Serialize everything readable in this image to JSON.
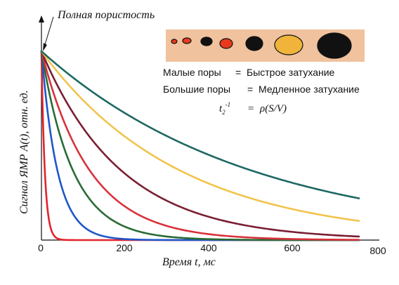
{
  "chart_data": {
    "type": "line",
    "title": "",
    "xlabel": "Время t, мс",
    "ylabel": "Сигнал ЯМР A(t), отн. ед.",
    "xlim": [
      0,
      800
    ],
    "ylim": [
      0,
      1
    ],
    "x_ticks": [
      "0",
      "200",
      "400",
      "600",
      "800"
    ],
    "grid": false,
    "annotations": {
      "full_porosity": "Полная пористость",
      "small_pores": "Малые поры",
      "fast_decay": "Быстрое затухание",
      "large_pores": "Большие поры",
      "slow_decay": "Медленное затухание",
      "eq": "=",
      "formula_lhs": "t2-1",
      "formula_rhs": "ρ(S/V)"
    },
    "pore_colors": [
      "#e8391f",
      "#e8391f",
      "#111111",
      "#e8391f",
      "#111111",
      "#f0b43a",
      "#111111"
    ],
    "series": [
      {
        "color": "#e4232b",
        "T2_ms": 8
      },
      {
        "color": "#1f56c8",
        "T2_ms": 38
      },
      {
        "color": "#2a6b35",
        "T2_ms": 75
      },
      {
        "color": "#d9323c",
        "T2_ms": 115
      },
      {
        "color": "#7a1f33",
        "T2_ms": 190
      },
      {
        "color": "#f1c44e",
        "T2_ms": 330
      },
      {
        "color": "#1d6863",
        "T2_ms": 500
      }
    ]
  }
}
